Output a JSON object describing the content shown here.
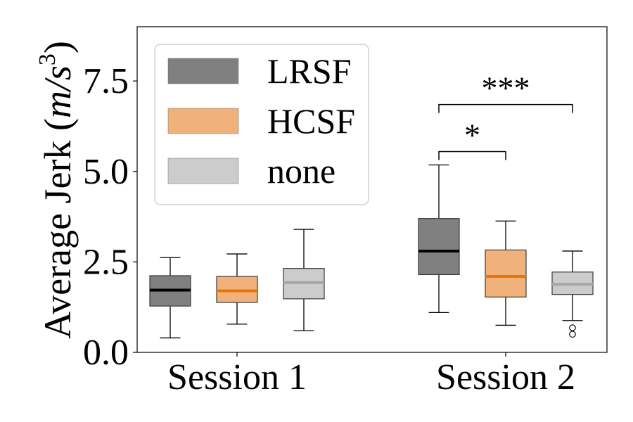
{
  "chart_data": {
    "type": "box",
    "ylabel_text": "Average Jerk (",
    "ylabel_unit": "m/s",
    "ylabel_exp": "3",
    "ylabel_close": ")",
    "ylim": [
      0,
      9
    ],
    "yticks": [
      0.0,
      2.5,
      5.0,
      7.5
    ],
    "ytick_labels": [
      "0.0",
      "2.5",
      "5.0",
      "7.5"
    ],
    "categories": [
      "Session 1",
      "Session 2"
    ],
    "legend_position": "top-left",
    "series": [
      {
        "name": "LRSF",
        "fill": "#808080",
        "median_color": "#000000",
        "boxes": [
          {
            "whisker_low": 0.4,
            "q1": 1.28,
            "median": 1.72,
            "q3": 2.12,
            "whisker_high": 2.62,
            "outliers": []
          },
          {
            "whisker_low": 1.1,
            "q1": 2.15,
            "median": 2.8,
            "q3": 3.7,
            "whisker_high": 5.18,
            "outliers": []
          }
        ]
      },
      {
        "name": "HCSF",
        "fill": "#f0b27a",
        "median_color": "#e8740c",
        "boxes": [
          {
            "whisker_low": 0.78,
            "q1": 1.38,
            "median": 1.7,
            "q3": 2.1,
            "whisker_high": 2.72,
            "outliers": []
          },
          {
            "whisker_low": 0.75,
            "q1": 1.53,
            "median": 2.1,
            "q3": 2.83,
            "whisker_high": 3.63,
            "outliers": []
          }
        ]
      },
      {
        "name": "none",
        "fill": "#cccccc",
        "median_color": "#a6a6a6",
        "boxes": [
          {
            "whisker_low": 0.6,
            "q1": 1.48,
            "median": 1.93,
            "q3": 2.32,
            "whisker_high": 3.4,
            "outliers": []
          },
          {
            "whisker_low": 0.88,
            "q1": 1.6,
            "median": 1.88,
            "q3": 2.22,
            "whisker_high": 2.8,
            "outliers": [
              0.68,
              0.5
            ]
          }
        ]
      }
    ],
    "annotations": [
      {
        "label": "*",
        "from_series": 0,
        "to_series": 1,
        "category": 1,
        "y": 5.55
      },
      {
        "label": "***",
        "from_series": 0,
        "to_series": 2,
        "category": 1,
        "y": 6.85
      }
    ]
  }
}
